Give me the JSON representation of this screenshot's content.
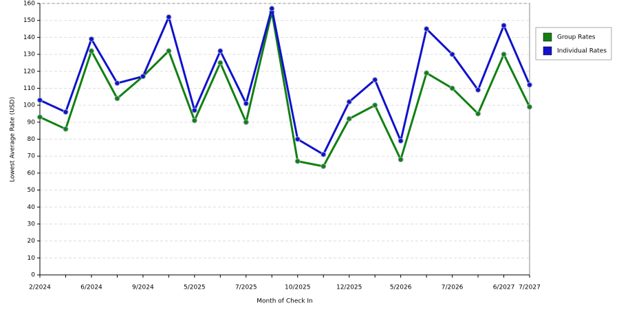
{
  "chart_data": {
    "type": "line",
    "x_label": "Month of Check In",
    "y_label": "Lowest Average Rate (USD)",
    "categories": [
      "2/2024",
      null,
      "6/2024",
      null,
      "9/2024",
      null,
      "5/2025",
      null,
      "7/2025",
      null,
      "10/2025",
      null,
      "12/2025",
      null,
      "5/2026",
      null,
      "7/2026",
      null,
      "6/2027",
      "7/2027"
    ],
    "series": [
      {
        "name": "Group Rates",
        "color": "#118011",
        "values": [
          93,
          86,
          132,
          104,
          117,
          132,
          91,
          125,
          90,
          155,
          67,
          64,
          92,
          100,
          68,
          119,
          110,
          95,
          130,
          99
        ]
      },
      {
        "name": "Individual Rates",
        "color": "#1111cc",
        "values": [
          103,
          96,
          139,
          113,
          117,
          152,
          97,
          132,
          101,
          157,
          80,
          71,
          102,
          115,
          79,
          145,
          130,
          109,
          147,
          112
        ]
      }
    ],
    "ylim": [
      0,
      160
    ],
    "yticks": [
      0,
      10,
      20,
      30,
      40,
      50,
      60,
      70,
      80,
      90,
      100,
      110,
      120,
      130,
      140,
      150,
      160
    ],
    "grid": true,
    "legend": "right"
  }
}
